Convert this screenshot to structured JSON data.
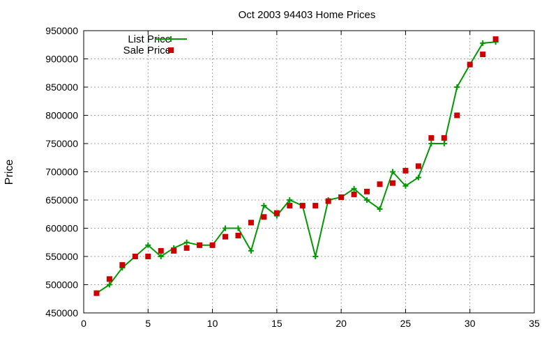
{
  "chart_data": {
    "type": "line",
    "title": "Oct 2003 94403 Home Prices",
    "xlabel": "",
    "ylabel": "Price",
    "xlim": [
      0,
      35
    ],
    "ylim": [
      450000,
      950000
    ],
    "x_ticks": [
      0,
      5,
      10,
      15,
      20,
      25,
      30,
      35
    ],
    "y_ticks": [
      450000,
      500000,
      550000,
      600000,
      650000,
      700000,
      750000,
      800000,
      850000,
      900000,
      950000
    ],
    "grid": true,
    "legend_position": "top-left",
    "series": [
      {
        "name": "List Price",
        "style": "line+cross-points",
        "color": "#009900",
        "x": [
          1,
          2,
          3,
          4,
          5,
          6,
          7,
          8,
          9,
          10,
          11,
          12,
          13,
          14,
          15,
          16,
          17,
          18,
          19,
          20,
          21,
          22,
          23,
          24,
          25,
          26,
          27,
          28,
          29,
          30,
          31,
          32
        ],
        "y": [
          485000,
          500000,
          530000,
          550000,
          570000,
          550000,
          565000,
          575000,
          570000,
          570000,
          600000,
          600000,
          560000,
          640000,
          622000,
          650000,
          640000,
          550000,
          650000,
          655000,
          670000,
          650000,
          634000,
          700000,
          675000,
          690000,
          750000,
          750000,
          850000,
          890000,
          928000,
          930000
        ]
      },
      {
        "name": "Sale Price",
        "style": "square-points",
        "color": "#cc0000",
        "x": [
          1,
          2,
          3,
          4,
          5,
          6,
          7,
          8,
          9,
          10,
          11,
          12,
          13,
          14,
          15,
          16,
          17,
          18,
          19,
          20,
          21,
          22,
          23,
          24,
          25,
          26,
          27,
          28,
          29,
          30,
          31,
          32
        ],
        "y": [
          485000,
          510000,
          535000,
          550000,
          550000,
          560000,
          560000,
          565000,
          570000,
          570000,
          585000,
          587000,
          610000,
          620000,
          627000,
          640000,
          640000,
          640000,
          648000,
          655000,
          660000,
          665000,
          678000,
          680000,
          702000,
          710000,
          760000,
          760000,
          800000,
          890000,
          908000,
          935000
        ]
      }
    ]
  }
}
